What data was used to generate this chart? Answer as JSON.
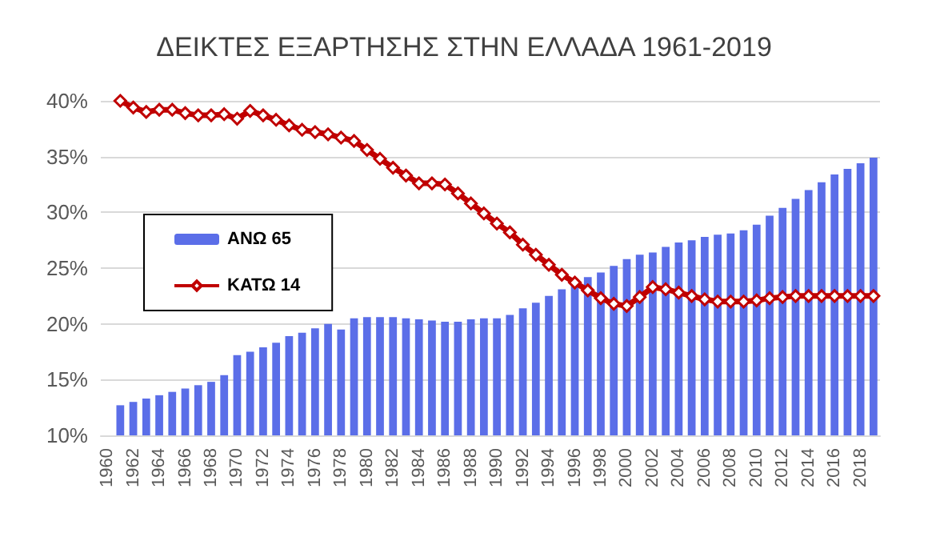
{
  "chart_data": {
    "type": "bar",
    "title": "ΔΕΙΚΤΕΣ ΕΞΑΡΤΗΣΗΣ ΣΤΗΝ ΕΛΛΑΔΑ 1961-2019",
    "categories": [
      "1960",
      null,
      "1962",
      null,
      "1964",
      null,
      "1966",
      null,
      "1968",
      null,
      "1970",
      null,
      "1972",
      null,
      "1974",
      null,
      "1976",
      null,
      "1978",
      null,
      "1980",
      null,
      "1982",
      null,
      "1984",
      null,
      "1986",
      null,
      "1988",
      null,
      "1990",
      null,
      "1992",
      null,
      "1994",
      null,
      "1996",
      null,
      "1998",
      null,
      "2000",
      null,
      "2002",
      null,
      "2004",
      null,
      "2006",
      null,
      "2008",
      null,
      "2010",
      null,
      "2012",
      null,
      "2014",
      null,
      "2016",
      null,
      "2018",
      null
    ],
    "series": [
      {
        "name": "ΑΝΩ 65",
        "color": "#5b6ee8",
        "values": [
          null,
          12.7,
          13.0,
          13.3,
          13.6,
          13.9,
          14.2,
          14.5,
          14.8,
          15.4,
          17.2,
          17.5,
          17.9,
          18.3,
          18.9,
          19.2,
          19.6,
          20.0,
          19.5,
          20.5,
          20.6,
          20.6,
          20.6,
          20.5,
          20.4,
          20.3,
          20.2,
          20.2,
          20.4,
          20.5,
          20.5,
          20.8,
          21.4,
          21.9,
          22.5,
          23.1,
          23.5,
          24.2,
          24.6,
          25.2,
          25.8,
          26.2,
          26.4,
          26.9,
          27.3,
          27.5,
          27.8,
          28.0,
          28.1,
          28.4,
          28.9,
          29.7,
          30.4,
          31.2,
          32.0,
          32.7,
          33.4,
          33.9,
          34.4,
          34.9
        ]
      },
      {
        "name": "ΚΑΤΩ 14",
        "type": "line",
        "color": "#c00000",
        "values": [
          null,
          40.0,
          39.4,
          39.0,
          39.2,
          39.2,
          38.9,
          38.7,
          38.7,
          38.8,
          38.4,
          39.1,
          38.7,
          38.3,
          37.8,
          37.4,
          37.2,
          37.0,
          36.7,
          36.4,
          35.6,
          34.8,
          34.0,
          33.3,
          32.6,
          32.6,
          32.5,
          31.7,
          30.8,
          29.9,
          29.0,
          28.2,
          27.1,
          26.2,
          25.3,
          24.4,
          23.7,
          23.0,
          22.3,
          21.8,
          21.6,
          22.4,
          23.3,
          23.1,
          22.8,
          22.5,
          22.2,
          22.0,
          22.0,
          22.0,
          22.1,
          22.3,
          22.4,
          22.5,
          22.5,
          22.5,
          22.5,
          22.5,
          22.5,
          22.5
        ]
      }
    ],
    "ylim": [
      10,
      40
    ],
    "yticks": [
      {
        "value": 10,
        "label": "10%"
      },
      {
        "value": 15,
        "label": "15%"
      },
      {
        "value": 20,
        "label": "20%"
      },
      {
        "value": 25,
        "label": "25%"
      },
      {
        "value": 30,
        "label": "30%"
      },
      {
        "value": 35,
        "label": "35%"
      },
      {
        "value": 40,
        "label": "40%"
      }
    ],
    "grid": "y",
    "legend": "left",
    "marker": "diamond"
  }
}
